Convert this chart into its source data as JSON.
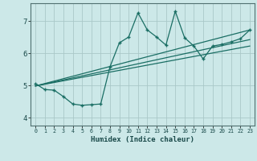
{
  "xlabel": "Humidex (Indice chaleur)",
  "ylabel": "",
  "bg_color": "#cce8e8",
  "grid_color": "#aac8c8",
  "line_color": "#1a6e64",
  "xlim": [
    -0.5,
    23.5
  ],
  "ylim": [
    3.75,
    7.55
  ],
  "yticks": [
    4,
    5,
    6,
    7
  ],
  "xticks": [
    0,
    1,
    2,
    3,
    4,
    5,
    6,
    7,
    8,
    9,
    10,
    11,
    12,
    13,
    14,
    15,
    16,
    17,
    18,
    19,
    20,
    21,
    22,
    23
  ],
  "series1_x": [
    0,
    1,
    2,
    3,
    4,
    5,
    6,
    7,
    8,
    9,
    10,
    11,
    12,
    13,
    14,
    15,
    16,
    17,
    18,
    19,
    20,
    21,
    22,
    23
  ],
  "series1_y": [
    5.05,
    4.87,
    4.85,
    4.65,
    4.42,
    4.38,
    4.4,
    4.42,
    5.58,
    6.32,
    6.5,
    7.25,
    6.72,
    6.5,
    6.25,
    7.3,
    6.48,
    6.22,
    5.82,
    6.22,
    6.27,
    6.35,
    6.45,
    6.72
  ],
  "series2_x": [
    0,
    23
  ],
  "series2_y": [
    4.98,
    6.72
  ],
  "series3_x": [
    0,
    23
  ],
  "series3_y": [
    4.98,
    6.42
  ],
  "series4_x": [
    0,
    23
  ],
  "series4_y": [
    4.98,
    6.22
  ]
}
